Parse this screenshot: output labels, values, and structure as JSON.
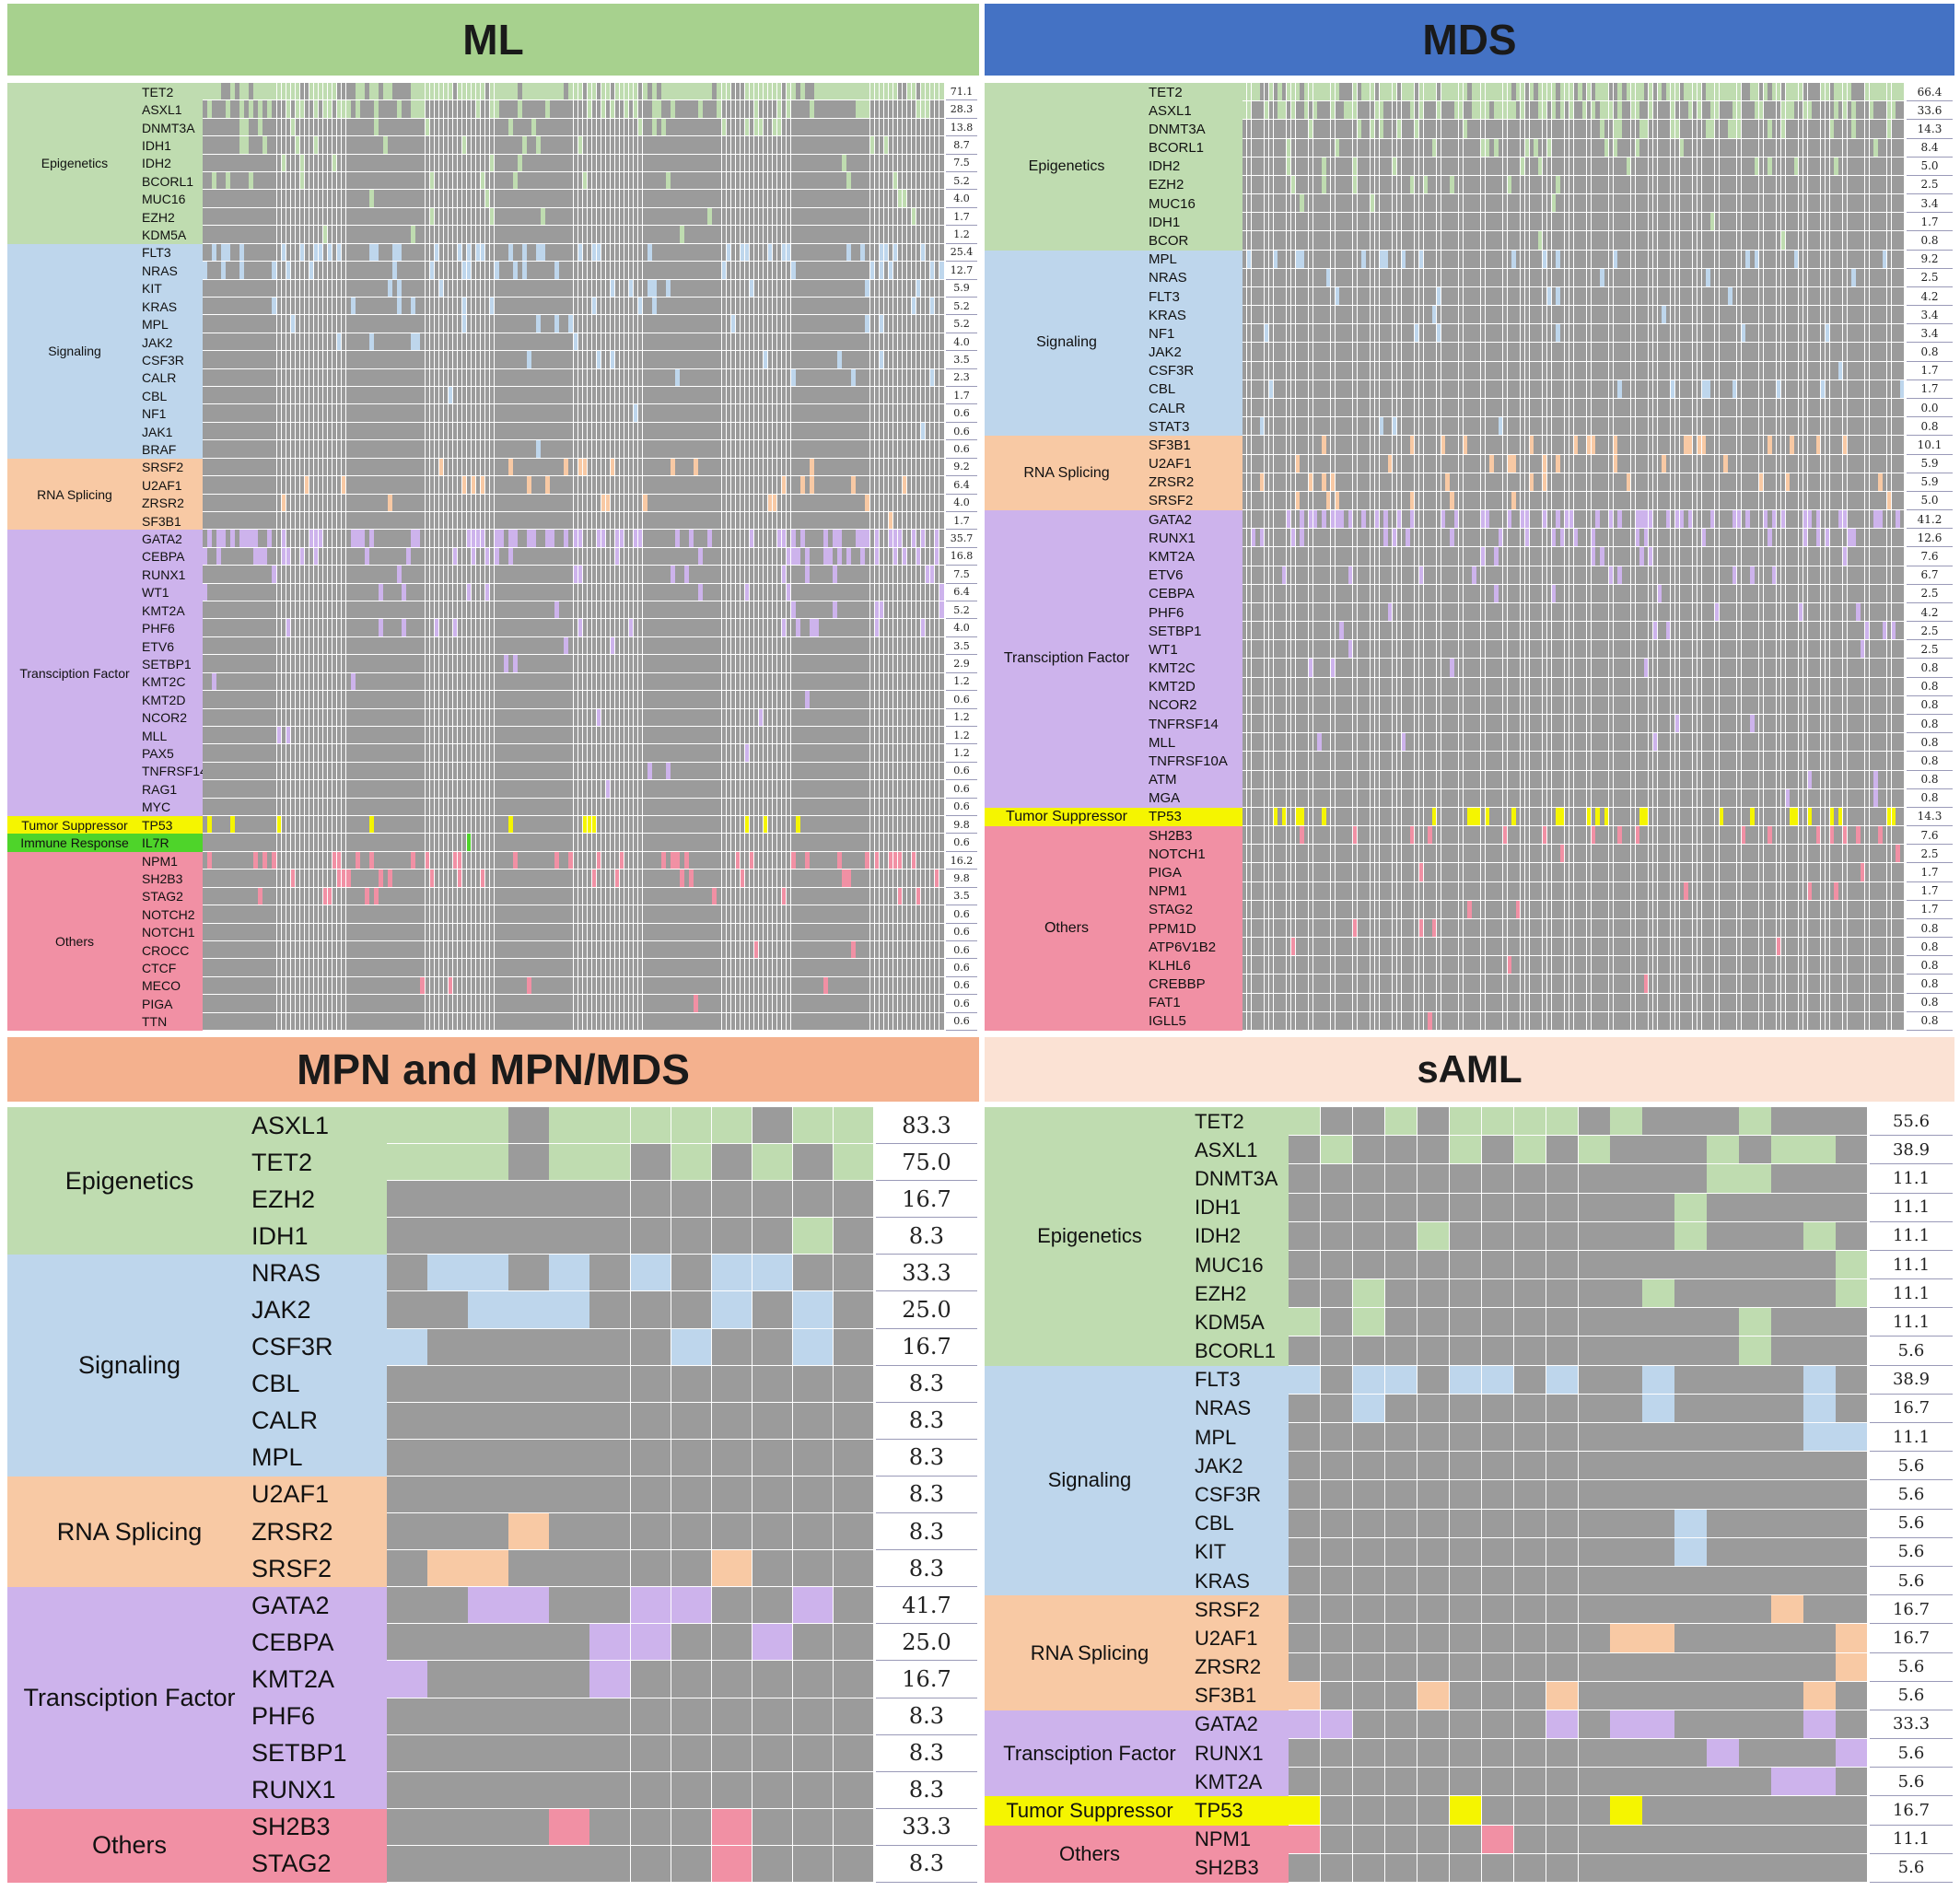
{
  "colors": {
    "Epigenetics": "#bfdcb0",
    "Signaling": "#bed6ec",
    "RNA Splicing": "#f8c9a4",
    "Transciption Factor": "#cdb3ec",
    "Tumor Suppressor": "#f5f500",
    "Immune Response": "#4ed42a",
    "Others": "#f190a4",
    "cell_gray": "#9b9b9b",
    "title_ml": "#a7d18e",
    "title_mds": "#4472c4",
    "title_mpn": "#f4b18e",
    "title_saml": "#fbe2d4"
  },
  "chart_data": [
    {
      "type": "heatmap",
      "title": "ML",
      "groups": [
        {
          "category": "Epigenetics",
          "genes": [
            {
              "gene": "TET2",
              "pct": "71.1"
            },
            {
              "gene": "ASXL1",
              "pct": "28.3"
            },
            {
              "gene": "DNMT3A",
              "pct": "13.8"
            },
            {
              "gene": "IDH1",
              "pct": "8.7"
            },
            {
              "gene": "IDH2",
              "pct": "7.5"
            },
            {
              "gene": "BCORL1",
              "pct": "5.2"
            },
            {
              "gene": "MUC16",
              "pct": "4.0"
            },
            {
              "gene": "EZH2",
              "pct": "1.7"
            },
            {
              "gene": "KDM5A",
              "pct": "1.2"
            }
          ]
        },
        {
          "category": "Signaling",
          "genes": [
            {
              "gene": "FLT3",
              "pct": "25.4"
            },
            {
              "gene": "NRAS",
              "pct": "12.7"
            },
            {
              "gene": "KIT",
              "pct": "5.9"
            },
            {
              "gene": "KRAS",
              "pct": "5.2"
            },
            {
              "gene": "MPL",
              "pct": "5.2"
            },
            {
              "gene": "JAK2",
              "pct": "4.0"
            },
            {
              "gene": "CSF3R",
              "pct": "3.5"
            },
            {
              "gene": "CALR",
              "pct": "2.3"
            },
            {
              "gene": "CBL",
              "pct": "1.7"
            },
            {
              "gene": "NF1",
              "pct": "0.6"
            },
            {
              "gene": "JAK1",
              "pct": "0.6"
            },
            {
              "gene": "BRAF",
              "pct": "0.6"
            }
          ]
        },
        {
          "category": "RNA Splicing",
          "genes": [
            {
              "gene": "SRSF2",
              "pct": "9.2"
            },
            {
              "gene": "U2AF1",
              "pct": "6.4"
            },
            {
              "gene": "ZRSR2",
              "pct": "4.0"
            },
            {
              "gene": "SF3B1",
              "pct": "1.7"
            }
          ]
        },
        {
          "category": "Transciption Factor",
          "genes": [
            {
              "gene": "GATA2",
              "pct": "35.7"
            },
            {
              "gene": "CEBPA",
              "pct": "16.8"
            },
            {
              "gene": "RUNX1",
              "pct": "7.5"
            },
            {
              "gene": "WT1",
              "pct": "6.4"
            },
            {
              "gene": "KMT2A",
              "pct": "5.2"
            },
            {
              "gene": "PHF6",
              "pct": "4.0"
            },
            {
              "gene": "ETV6",
              "pct": "3.5"
            },
            {
              "gene": "SETBP1",
              "pct": "2.9"
            },
            {
              "gene": "KMT2C",
              "pct": "1.2"
            },
            {
              "gene": "KMT2D",
              "pct": "0.6"
            },
            {
              "gene": "NCOR2",
              "pct": "1.2"
            },
            {
              "gene": "MLL",
              "pct": "1.2"
            },
            {
              "gene": "PAX5",
              "pct": "1.2"
            },
            {
              "gene": "TNFRSF14",
              "pct": "0.6"
            },
            {
              "gene": "RAG1",
              "pct": "0.6"
            },
            {
              "gene": "MYC",
              "pct": "0.6"
            }
          ]
        },
        {
          "category": "Tumor Suppressor",
          "genes": [
            {
              "gene": "TP53",
              "pct": "9.8"
            }
          ]
        },
        {
          "category": "Immune Response",
          "genes": [
            {
              "gene": "IL7R",
              "pct": "0.6"
            }
          ]
        },
        {
          "category": "Others",
          "genes": [
            {
              "gene": "NPM1",
              "pct": "16.2"
            },
            {
              "gene": "SH2B3",
              "pct": "9.8"
            },
            {
              "gene": "STAG2",
              "pct": "3.5"
            },
            {
              "gene": "NOTCH2",
              "pct": "0.6"
            },
            {
              "gene": "NOTCH1",
              "pct": "0.6"
            },
            {
              "gene": "CROCC",
              "pct": "0.6"
            },
            {
              "gene": "CTCF",
              "pct": "0.6"
            },
            {
              "gene": "MECO",
              "pct": "0.6"
            },
            {
              "gene": "PIGA",
              "pct": "0.6"
            },
            {
              "gene": "TTN",
              "pct": "0.6"
            }
          ]
        }
      ]
    },
    {
      "type": "heatmap",
      "title": "MDS",
      "groups": [
        {
          "category": "Epigenetics",
          "genes": [
            {
              "gene": "TET2",
              "pct": "66.4"
            },
            {
              "gene": "ASXL1",
              "pct": "33.6"
            },
            {
              "gene": "DNMT3A",
              "pct": "14.3"
            },
            {
              "gene": "BCORL1",
              "pct": "8.4"
            },
            {
              "gene": "IDH2",
              "pct": "5.0"
            },
            {
              "gene": "EZH2",
              "pct": "2.5"
            },
            {
              "gene": "MUC16",
              "pct": "3.4"
            },
            {
              "gene": "IDH1",
              "pct": "1.7"
            },
            {
              "gene": "BCOR",
              "pct": "0.8"
            }
          ]
        },
        {
          "category": "Signaling",
          "genes": [
            {
              "gene": "MPL",
              "pct": "9.2"
            },
            {
              "gene": "NRAS",
              "pct": "2.5"
            },
            {
              "gene": "FLT3",
              "pct": "4.2"
            },
            {
              "gene": "KRAS",
              "pct": "3.4"
            },
            {
              "gene": "NF1",
              "pct": "3.4"
            },
            {
              "gene": "JAK2",
              "pct": "0.8"
            },
            {
              "gene": "CSF3R",
              "pct": "1.7"
            },
            {
              "gene": "CBL",
              "pct": "1.7"
            },
            {
              "gene": "CALR",
              "pct": "0.0"
            },
            {
              "gene": "STAT3",
              "pct": "0.8"
            }
          ]
        },
        {
          "category": "RNA Splicing",
          "genes": [
            {
              "gene": "SF3B1",
              "pct": "10.1"
            },
            {
              "gene": "U2AF1",
              "pct": "5.9"
            },
            {
              "gene": "ZRSR2",
              "pct": "5.9"
            },
            {
              "gene": "SRSF2",
              "pct": "5.0"
            }
          ]
        },
        {
          "category": "Transciption Factor",
          "genes": [
            {
              "gene": "GATA2",
              "pct": "41.2"
            },
            {
              "gene": "RUNX1",
              "pct": "12.6"
            },
            {
              "gene": "KMT2A",
              "pct": "7.6"
            },
            {
              "gene": "ETV6",
              "pct": "6.7"
            },
            {
              "gene": "CEBPA",
              "pct": "2.5"
            },
            {
              "gene": "PHF6",
              "pct": "4.2"
            },
            {
              "gene": "SETBP1",
              "pct": "2.5"
            },
            {
              "gene": "WT1",
              "pct": "2.5"
            },
            {
              "gene": "KMT2C",
              "pct": "0.8"
            },
            {
              "gene": "KMT2D",
              "pct": "0.8"
            },
            {
              "gene": "NCOR2",
              "pct": "0.8"
            },
            {
              "gene": "TNFRSF14",
              "pct": "0.8"
            },
            {
              "gene": "MLL",
              "pct": "0.8"
            },
            {
              "gene": "TNFRSF10A",
              "pct": "0.8"
            },
            {
              "gene": "ATM",
              "pct": "0.8"
            },
            {
              "gene": "MGA",
              "pct": "0.8"
            }
          ]
        },
        {
          "category": "Tumor Suppressor",
          "genes": [
            {
              "gene": "TP53",
              "pct": "14.3"
            }
          ]
        },
        {
          "category": "Others",
          "genes": [
            {
              "gene": "SH2B3",
              "pct": "7.6"
            },
            {
              "gene": "NOTCH1",
              "pct": "2.5"
            },
            {
              "gene": "PIGA",
              "pct": "1.7"
            },
            {
              "gene": "NPM1",
              "pct": "1.7"
            },
            {
              "gene": "STAG2",
              "pct": "1.7"
            },
            {
              "gene": "PPM1D",
              "pct": "0.8"
            },
            {
              "gene": "ATP6V1B2",
              "pct": "0.8"
            },
            {
              "gene": "KLHL6",
              "pct": "0.8"
            },
            {
              "gene": "CREBBP",
              "pct": "0.8"
            },
            {
              "gene": "FAT1",
              "pct": "0.8"
            },
            {
              "gene": "IGLL5",
              "pct": "0.8"
            }
          ]
        }
      ]
    },
    {
      "type": "heatmap",
      "title": "MPN and MPN/MDS",
      "groups": [
        {
          "category": "Epigenetics",
          "genes": [
            {
              "gene": "ASXL1",
              "pct": "83.3"
            },
            {
              "gene": "TET2",
              "pct": "75.0"
            },
            {
              "gene": "EZH2",
              "pct": "16.7"
            },
            {
              "gene": "IDH1",
              "pct": "8.3"
            }
          ]
        },
        {
          "category": "Signaling",
          "genes": [
            {
              "gene": "NRAS",
              "pct": "33.3"
            },
            {
              "gene": "JAK2",
              "pct": "25.0"
            },
            {
              "gene": "CSF3R",
              "pct": "16.7"
            },
            {
              "gene": "CBL",
              "pct": "8.3"
            },
            {
              "gene": "CALR",
              "pct": "8.3"
            },
            {
              "gene": "MPL",
              "pct": "8.3"
            }
          ]
        },
        {
          "category": "RNA Splicing",
          "genes": [
            {
              "gene": "U2AF1",
              "pct": "8.3"
            },
            {
              "gene": "ZRSR2",
              "pct": "8.3"
            },
            {
              "gene": "SRSF2",
              "pct": "8.3"
            }
          ]
        },
        {
          "category": "Transciption Factor",
          "genes": [
            {
              "gene": "GATA2",
              "pct": "41.7"
            },
            {
              "gene": "CEBPA",
              "pct": "25.0"
            },
            {
              "gene": "KMT2A",
              "pct": "16.7"
            },
            {
              "gene": "PHF6",
              "pct": "8.3"
            },
            {
              "gene": "SETBP1",
              "pct": "8.3"
            },
            {
              "gene": "RUNX1",
              "pct": "8.3"
            }
          ]
        },
        {
          "category": "Others",
          "genes": [
            {
              "gene": "SH2B3",
              "pct": "33.3"
            },
            {
              "gene": "STAG2",
              "pct": "8.3"
            }
          ]
        }
      ]
    },
    {
      "type": "heatmap",
      "title": "sAML",
      "groups": [
        {
          "category": "Epigenetics",
          "genes": [
            {
              "gene": "TET2",
              "pct": "55.6"
            },
            {
              "gene": "ASXL1",
              "pct": "38.9"
            },
            {
              "gene": "DNMT3A",
              "pct": "11.1"
            },
            {
              "gene": "IDH1",
              "pct": "11.1"
            },
            {
              "gene": "IDH2",
              "pct": "11.1"
            },
            {
              "gene": "MUC16",
              "pct": "11.1"
            },
            {
              "gene": "EZH2",
              "pct": "11.1"
            },
            {
              "gene": "KDM5A",
              "pct": "11.1"
            },
            {
              "gene": "BCORL1",
              "pct": "5.6"
            }
          ]
        },
        {
          "category": "Signaling",
          "genes": [
            {
              "gene": "FLT3",
              "pct": "38.9"
            },
            {
              "gene": "NRAS",
              "pct": "16.7"
            },
            {
              "gene": "MPL",
              "pct": "11.1"
            },
            {
              "gene": "JAK2",
              "pct": "5.6"
            },
            {
              "gene": "CSF3R",
              "pct": "5.6"
            },
            {
              "gene": "CBL",
              "pct": "5.6"
            },
            {
              "gene": "KIT",
              "pct": "5.6"
            },
            {
              "gene": "KRAS",
              "pct": "5.6"
            }
          ]
        },
        {
          "category": "RNA Splicing",
          "genes": [
            {
              "gene": "SRSF2",
              "pct": "16.7"
            },
            {
              "gene": "U2AF1",
              "pct": "16.7"
            },
            {
              "gene": "ZRSR2",
              "pct": "5.6"
            },
            {
              "gene": "SF3B1",
              "pct": "5.6"
            }
          ]
        },
        {
          "category": "Transciption Factor",
          "genes": [
            {
              "gene": "GATA2",
              "pct": "33.3"
            },
            {
              "gene": "RUNX1",
              "pct": "5.6"
            },
            {
              "gene": "KMT2A",
              "pct": "5.6"
            }
          ]
        },
        {
          "category": "Tumor Suppressor",
          "genes": [
            {
              "gene": "TP53",
              "pct": "16.7"
            }
          ]
        },
        {
          "category": "Others",
          "genes": [
            {
              "gene": "NPM1",
              "pct": "11.1"
            },
            {
              "gene": "SH2B3",
              "pct": "5.6"
            }
          ]
        }
      ]
    }
  ]
}
